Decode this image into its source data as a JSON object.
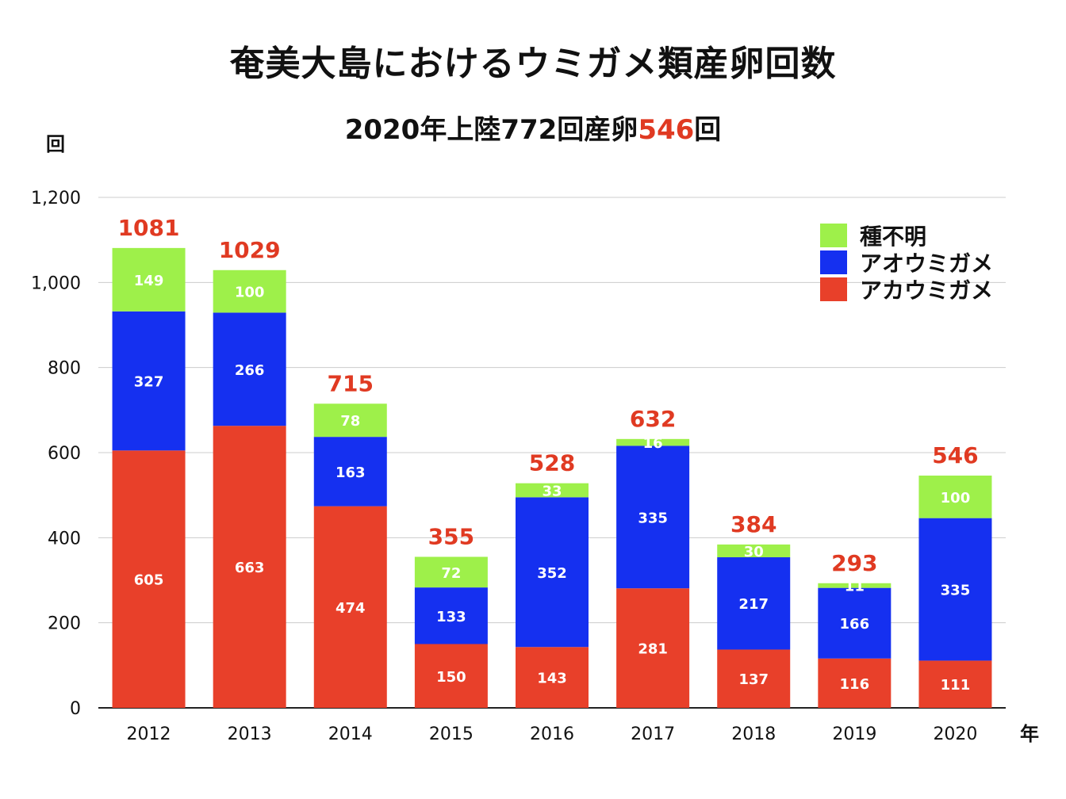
{
  "title": "奄美大島におけるウミガメ類産卵回数",
  "subtitle": {
    "prefix": "2020年上陸772回産卵",
    "highlight": "546",
    "suffix": "回"
  },
  "colors": {
    "unknown": "#9ef04a",
    "green_turtle": "#1530f0",
    "loggerhead": "#e8402a",
    "total_label": "#e03a22",
    "grid": "#cccccc",
    "axis": "#222222"
  },
  "chart_data": {
    "type": "bar",
    "stacked": true,
    "title": "奄美大島におけるウミガメ類産卵回数",
    "subtitle": "2020年上陸772回産卵546回",
    "ylabel": "回",
    "xlabel": "年",
    "ylim": [
      0,
      1200
    ],
    "yticks": [
      0,
      200,
      400,
      600,
      800,
      1000,
      1200
    ],
    "ytick_labels": [
      "0",
      "200",
      "400",
      "600",
      "800",
      "1,000",
      "1,200"
    ],
    "grid": true,
    "legend_position": "top-right",
    "categories": [
      "2012",
      "2013",
      "2014",
      "2015",
      "2016",
      "2017",
      "2018",
      "2019",
      "2020"
    ],
    "series": [
      {
        "name": "アカウミガメ",
        "color": "#e8402a",
        "values": [
          605,
          663,
          474,
          150,
          143,
          281,
          137,
          116,
          111
        ]
      },
      {
        "name": "アオウミガメ",
        "color": "#1530f0",
        "values": [
          327,
          266,
          163,
          133,
          352,
          335,
          217,
          166,
          335
        ]
      },
      {
        "name": "種不明",
        "color": "#9ef04a",
        "values": [
          149,
          100,
          78,
          72,
          33,
          16,
          30,
          11,
          100
        ]
      }
    ],
    "totals": [
      1081,
      1029,
      715,
      355,
      528,
      632,
      384,
      293,
      546
    ]
  },
  "legend": [
    {
      "label": "種不明",
      "color": "#9ef04a"
    },
    {
      "label": "アオウミガメ",
      "color": "#1530f0"
    },
    {
      "label": "アカウミガメ",
      "color": "#e8402a"
    }
  ]
}
